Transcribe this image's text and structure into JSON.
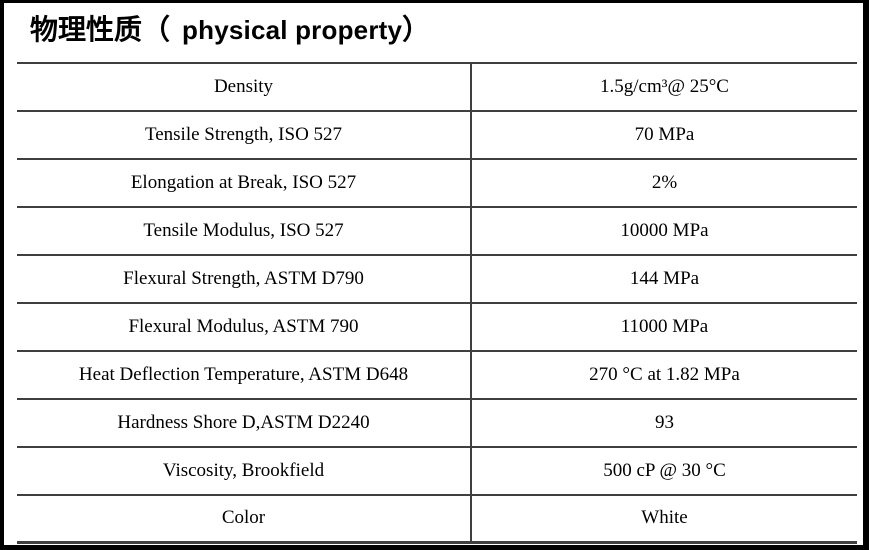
{
  "title": {
    "zh": "物理性质",
    "paren_open": "（",
    "en": "physical property",
    "paren_close": "）"
  },
  "table": {
    "rows": [
      {
        "property": "Density",
        "value": "1.5g/cm³@ 25°C"
      },
      {
        "property": "Tensile Strength, ISO 527",
        "value": "70 MPa"
      },
      {
        "property": "Elongation at Break, ISO 527",
        "value": "2%"
      },
      {
        "property": "Tensile Modulus, ISO 527",
        "value": "10000 MPa"
      },
      {
        "property": "Flexural Strength, ASTM D790",
        "value": "144 MPa"
      },
      {
        "property": "Flexural Modulus, ASTM 790",
        "value": "11000 MPa"
      },
      {
        "property": "Heat Deflection Temperature, ASTM D648",
        "value": "270 °C at 1.82 MPa"
      },
      {
        "property": "Hardness Shore D,ASTM D2240",
        "value": "93"
      },
      {
        "property": "Viscosity, Brookfield",
        "value": "500 cP @ 30 °C"
      },
      {
        "property": "Color",
        "value": "White"
      }
    ]
  },
  "colors": {
    "background": "#ffffff",
    "frame_border": "#000000",
    "table_line": "#3f3f3f",
    "text": "#000000"
  }
}
